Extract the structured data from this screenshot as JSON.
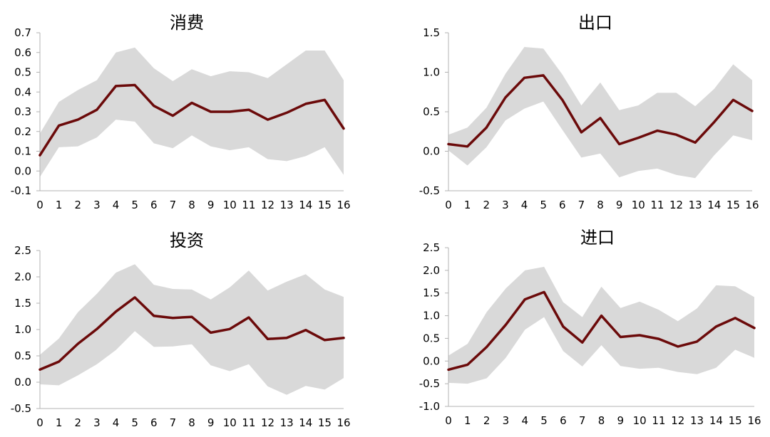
{
  "chart_data": [
    {
      "type": "area",
      "title": "消费",
      "x": [
        0,
        1,
        2,
        3,
        4,
        5,
        6,
        7,
        8,
        9,
        10,
        11,
        12,
        13,
        14,
        15,
        16
      ],
      "series": [
        {
          "role": "line",
          "values": [
            0.08,
            0.23,
            0.26,
            0.31,
            0.43,
            0.435,
            0.33,
            0.28,
            0.345,
            0.3,
            0.3,
            0.31,
            0.26,
            0.295,
            0.34,
            0.36,
            0.215
          ]
        },
        {
          "role": "band_upper",
          "values": [
            0.19,
            0.35,
            0.41,
            0.46,
            0.6,
            0.625,
            0.52,
            0.455,
            0.515,
            0.48,
            0.505,
            0.5,
            0.47,
            0.54,
            0.61,
            0.61,
            0.46
          ]
        },
        {
          "role": "band_lower",
          "values": [
            -0.03,
            0.12,
            0.125,
            0.17,
            0.26,
            0.25,
            0.14,
            0.115,
            0.18,
            0.125,
            0.105,
            0.12,
            0.06,
            0.05,
            0.075,
            0.12,
            -0.02
          ]
        }
      ],
      "ylim": [
        -0.1,
        0.7
      ],
      "yticks": [
        "0.7",
        "0.6",
        "0.5",
        "0.4",
        "0.3",
        "0.2",
        "0.1",
        "0.0",
        "-0.1"
      ],
      "xticks": [
        "0",
        "1",
        "2",
        "3",
        "4",
        "5",
        "6",
        "7",
        "8",
        "9",
        "10",
        "11",
        "12",
        "13",
        "14",
        "15",
        "16"
      ],
      "colors": {
        "line": "#6b0a0a",
        "band": "#d9d9d9"
      }
    },
    {
      "type": "area",
      "title": "出口",
      "x": [
        0,
        1,
        2,
        3,
        4,
        5,
        6,
        7,
        8,
        9,
        10,
        11,
        12,
        13,
        14,
        15,
        16
      ],
      "series": [
        {
          "role": "line",
          "values": [
            0.09,
            0.06,
            0.3,
            0.68,
            0.93,
            0.96,
            0.65,
            0.24,
            0.42,
            0.09,
            0.17,
            0.26,
            0.21,
            0.11,
            0.37,
            0.65,
            0.51
          ]
        },
        {
          "role": "band_upper",
          "values": [
            0.21,
            0.3,
            0.55,
            0.98,
            1.32,
            1.3,
            0.97,
            0.58,
            0.87,
            0.52,
            0.58,
            0.74,
            0.74,
            0.57,
            0.79,
            1.1,
            0.9
          ]
        },
        {
          "role": "band_lower",
          "values": [
            0.01,
            -0.18,
            0.05,
            0.39,
            0.54,
            0.63,
            0.27,
            -0.08,
            -0.03,
            -0.33,
            -0.25,
            -0.22,
            -0.3,
            -0.34,
            -0.05,
            0.2,
            0.14
          ]
        }
      ],
      "ylim": [
        -0.5,
        1.5
      ],
      "yticks": [
        "1.5",
        "1.0",
        "0.5",
        "0.0",
        "-0.5"
      ],
      "xticks": [
        "0",
        "1",
        "2",
        "3",
        "4",
        "5",
        "6",
        "7",
        "8",
        "9",
        "10",
        "11",
        "12",
        "13",
        "14",
        "15",
        "16"
      ],
      "colors": {
        "line": "#6b0a0a",
        "band": "#d9d9d9"
      }
    },
    {
      "type": "area",
      "title": "投资",
      "x": [
        0,
        1,
        2,
        3,
        4,
        5,
        6,
        7,
        8,
        9,
        10,
        11,
        12,
        13,
        14,
        15,
        16
      ],
      "series": [
        {
          "role": "line",
          "values": [
            0.24,
            0.39,
            0.73,
            1.01,
            1.34,
            1.61,
            1.26,
            1.22,
            1.24,
            0.94,
            1.01,
            1.23,
            0.82,
            0.84,
            0.99,
            0.8,
            0.84
          ]
        },
        {
          "role": "band_upper",
          "values": [
            0.52,
            0.83,
            1.33,
            1.68,
            2.08,
            2.24,
            1.85,
            1.77,
            1.76,
            1.57,
            1.8,
            2.12,
            1.74,
            1.91,
            2.05,
            1.76,
            1.62
          ]
        },
        {
          "role": "band_lower",
          "values": [
            -0.04,
            -0.06,
            0.13,
            0.34,
            0.61,
            0.97,
            0.67,
            0.68,
            0.72,
            0.32,
            0.21,
            0.34,
            -0.08,
            -0.24,
            -0.07,
            -0.14,
            0.08
          ]
        }
      ],
      "ylim": [
        -0.5,
        2.5
      ],
      "yticks": [
        "2.5",
        "2.0",
        "1.5",
        "1.0",
        "0.5",
        "0.0",
        "-0.5"
      ],
      "xticks": [
        "0",
        "1",
        "2",
        "3",
        "4",
        "5",
        "6",
        "7",
        "8",
        "9",
        "10",
        "11",
        "12",
        "13",
        "14",
        "15",
        "16"
      ],
      "colors": {
        "line": "#6b0a0a",
        "band": "#d9d9d9"
      }
    },
    {
      "type": "area",
      "title": "进口",
      "x": [
        0,
        1,
        2,
        3,
        4,
        5,
        6,
        7,
        8,
        9,
        10,
        11,
        12,
        13,
        14,
        15,
        16
      ],
      "series": [
        {
          "role": "line",
          "values": [
            -0.19,
            -0.08,
            0.31,
            0.8,
            1.36,
            1.52,
            0.76,
            0.41,
            1.0,
            0.53,
            0.57,
            0.49,
            0.32,
            0.43,
            0.76,
            0.95,
            0.73
          ]
        },
        {
          "role": "band_upper",
          "values": [
            0.12,
            0.38,
            1.08,
            1.6,
            2.0,
            2.08,
            1.3,
            0.97,
            1.64,
            1.17,
            1.31,
            1.13,
            0.88,
            1.16,
            1.67,
            1.65,
            1.41
          ]
        },
        {
          "role": "band_lower",
          "values": [
            -0.48,
            -0.5,
            -0.38,
            0.07,
            0.69,
            0.97,
            0.22,
            -0.12,
            0.35,
            -0.11,
            -0.17,
            -0.15,
            -0.24,
            -0.29,
            -0.15,
            0.25,
            0.07
          ]
        }
      ],
      "ylim": [
        -1.0,
        2.5
      ],
      "yticks": [
        "2.5",
        "2.0",
        "1.5",
        "1.0",
        "0.5",
        "0.0",
        "-0.5",
        "-1.0"
      ],
      "xticks": [
        "0",
        "1",
        "2",
        "3",
        "4",
        "5",
        "6",
        "7",
        "8",
        "9",
        "10",
        "11",
        "12",
        "13",
        "14",
        "15",
        "16"
      ],
      "colors": {
        "line": "#6b0a0a",
        "band": "#d9d9d9"
      }
    }
  ]
}
